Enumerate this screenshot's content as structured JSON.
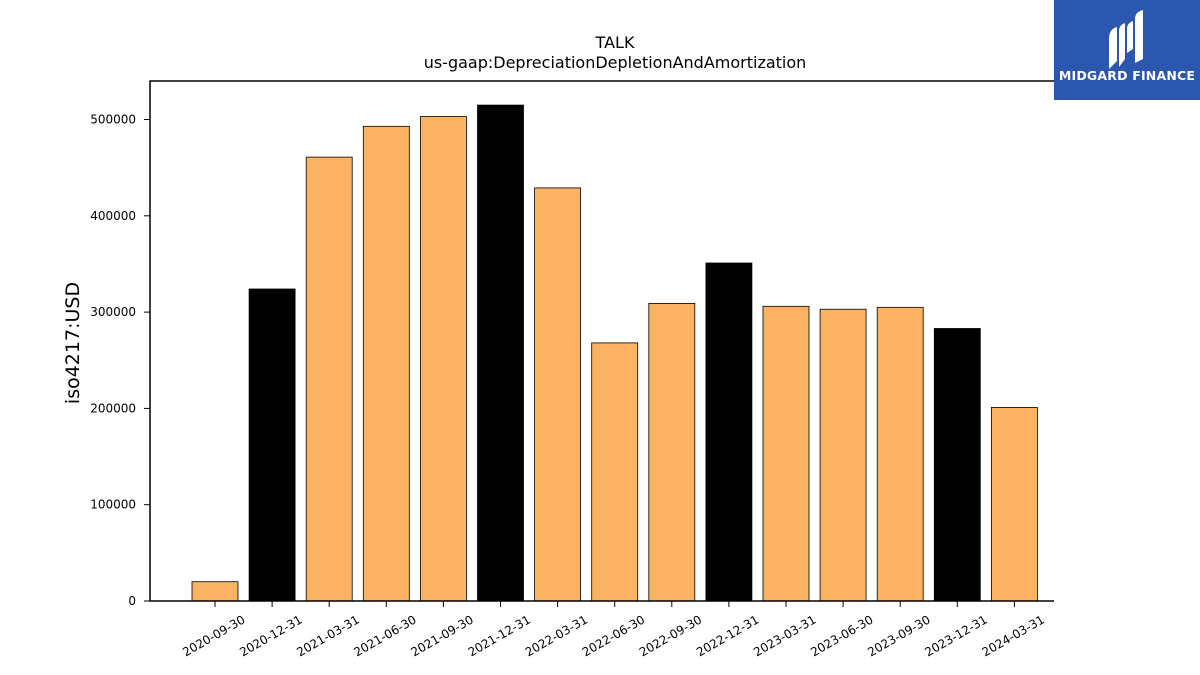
{
  "chart_data": {
    "type": "bar",
    "title": "TALK",
    "subtitle": "us-gaap:DepreciationDepletionAndAmortization",
    "xlabel": "",
    "ylabel": "iso4217:USD",
    "ylim": [
      0,
      540000
    ],
    "yticks": [
      0,
      100000,
      200000,
      300000,
      400000,
      500000
    ],
    "ytick_labels": [
      "0",
      "100000",
      "200000",
      "300000",
      "400000",
      "500000"
    ],
    "grid": false,
    "categories": [
      "2020-09-30",
      "2020-12-31",
      "2021-03-31",
      "2021-06-30",
      "2021-09-30",
      "2021-12-31",
      "2022-03-31",
      "2022-06-30",
      "2022-09-30",
      "2022-12-31",
      "2023-03-31",
      "2023-06-30",
      "2023-09-30",
      "2023-12-31",
      "2024-03-31"
    ],
    "values": [
      20000,
      324000,
      461000,
      493000,
      503000,
      515000,
      429000,
      268000,
      309000,
      351000,
      306000,
      303000,
      305000,
      283000,
      201000
    ],
    "bar_colors": [
      "#fbb262",
      "#000000",
      "#fbb262",
      "#fbb262",
      "#fbb262",
      "#000000",
      "#fbb262",
      "#fbb262",
      "#fbb262",
      "#000000",
      "#fbb262",
      "#fbb262",
      "#fbb262",
      "#000000",
      "#fbb262"
    ],
    "colors": {
      "quarter_bar": "#fbb262",
      "year_end_bar": "#000000",
      "bar_edge": "#000000",
      "axis": "#000000"
    }
  },
  "logo": {
    "text": "MIDGARD FINANCE",
    "background": "#2b57ae"
  }
}
